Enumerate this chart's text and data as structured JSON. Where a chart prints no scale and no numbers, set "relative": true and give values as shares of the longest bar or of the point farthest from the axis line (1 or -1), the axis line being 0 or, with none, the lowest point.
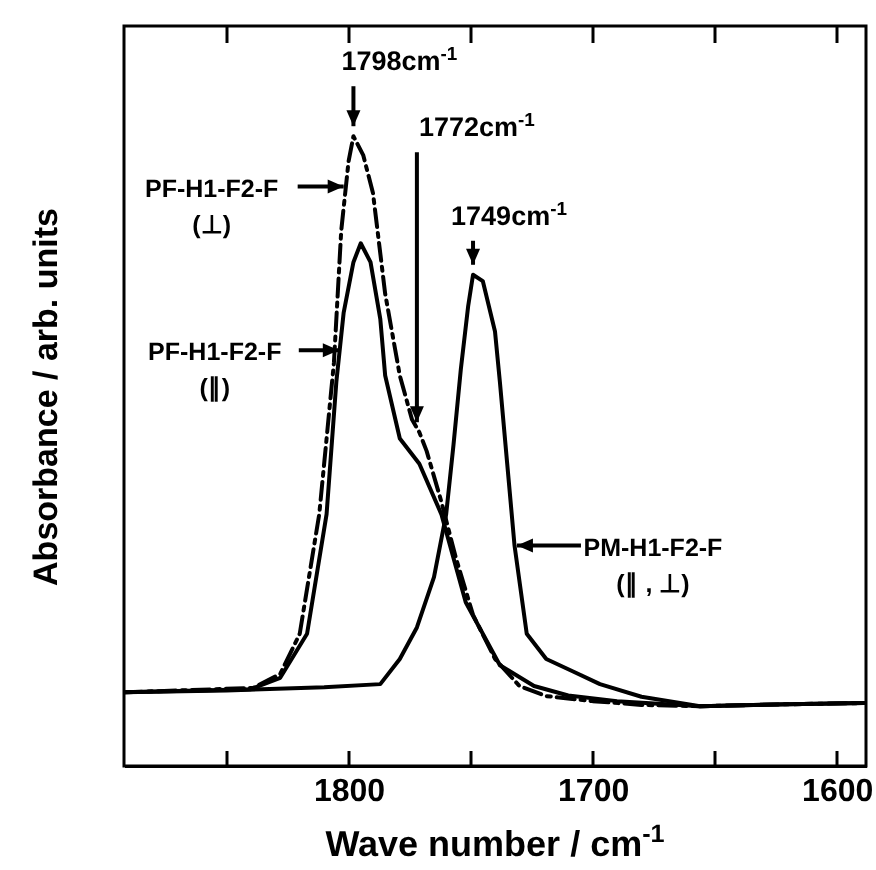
{
  "chart_data": {
    "type": "line",
    "relative": true,
    "xlabel": "Wave number  / cm$^{-1}$",
    "ylabel": "Absorbance  / arb. units",
    "xlim": [
      1892,
      1588
    ],
    "xticks": [
      {
        "value": 1850,
        "label": null
      },
      1800,
      {
        "value": 1750,
        "label": null
      },
      1700,
      {
        "value": 1650,
        "label": null
      },
      1600
    ],
    "grid": false,
    "marker": "none",
    "series": [
      {
        "color": "#000000",
        "line_style": "dashed",
        "x": [
          1892,
          1839,
          1828,
          1820,
          1812,
          1806,
          1803,
          1800,
          1798,
          1794,
          1790,
          1785,
          1779,
          1774,
          1771,
          1768,
          1762,
          1756,
          1749,
          1740,
          1730,
          1719,
          1700,
          1680,
          1656,
          1620,
          1589
        ],
        "values": [
          0.117,
          0.124,
          0.146,
          0.21,
          0.4,
          0.64,
          0.85,
          0.96,
          1.0,
          0.97,
          0.91,
          0.75,
          0.62,
          0.55,
          0.53,
          0.5,
          0.42,
          0.33,
          0.24,
          0.17,
          0.127,
          0.111,
          0.103,
          0.097,
          0.095,
          0.098,
          0.1
        ]
      },
      {
        "color": "#000000",
        "line_style": "solid",
        "x": [
          1892,
          1840,
          1828,
          1817,
          1809,
          1805,
          1802,
          1798,
          1795,
          1791,
          1787,
          1785,
          1779,
          1771,
          1762,
          1752,
          1738,
          1724,
          1710,
          1690,
          1656,
          1620,
          1589
        ],
        "values": [
          0.117,
          0.122,
          0.14,
          0.21,
          0.4,
          0.61,
          0.72,
          0.8,
          0.83,
          0.8,
          0.71,
          0.62,
          0.52,
          0.48,
          0.4,
          0.26,
          0.16,
          0.127,
          0.112,
          0.103,
          0.095,
          0.098,
          0.1
        ]
      },
      {
        "color": "#000000",
        "line_style": "solid",
        "x": [
          1892,
          1850,
          1810,
          1787,
          1779,
          1772,
          1765,
          1760,
          1757,
          1754,
          1751,
          1749,
          1745,
          1740,
          1738,
          1735,
          1732,
          1727,
          1719,
          1708,
          1697,
          1680,
          1656,
          1620,
          1589
        ],
        "values": [
          0.117,
          0.12,
          0.125,
          0.13,
          0.17,
          0.22,
          0.3,
          0.4,
          0.51,
          0.63,
          0.73,
          0.78,
          0.77,
          0.69,
          0.61,
          0.48,
          0.35,
          0.21,
          0.17,
          0.15,
          0.13,
          0.11,
          0.095,
          0.098,
          0.1
        ]
      }
    ],
    "annotations": [
      {
        "text": "1798cm$^{-1}$",
        "x": 1798,
        "y": 1.0
      },
      {
        "text": "1772cm$^{-1}$",
        "x": 1772,
        "y": 0.53
      },
      {
        "text": "1749cm$^{-1}$",
        "x": 1749,
        "y": 0.78
      },
      {
        "text": "PF-H1-F2-F (⊥)",
        "x": 1802,
        "y": 0.92
      },
      {
        "text": "PF-H1-F2-F (∥)",
        "x": 1804,
        "y": 0.66
      },
      {
        "text": "PM-H1-F2-F (∥ , ⊥)",
        "x": 1731,
        "y": 0.35
      }
    ]
  }
}
